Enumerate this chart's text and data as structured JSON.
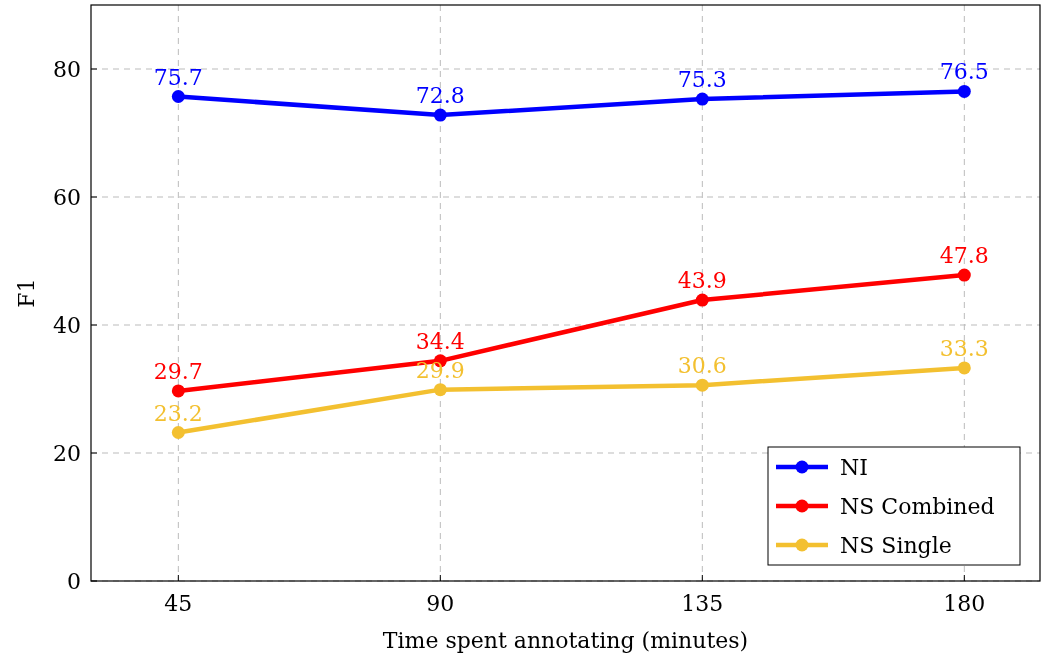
{
  "chart_data": {
    "type": "line",
    "xlabel": "Time spent annotating (minutes)",
    "ylabel": "F1",
    "x": [
      45,
      90,
      135,
      180
    ],
    "xlim": [
      30,
      193
    ],
    "xticks": [
      45,
      90,
      135,
      180
    ],
    "ylim": [
      0,
      90
    ],
    "yticks": [
      0,
      20,
      40,
      60,
      80
    ],
    "grid": true,
    "legend": "bottom right",
    "marker": "circle",
    "line_style": "solid",
    "data_labels": true,
    "series": [
      {
        "name": "NI",
        "color": "#0000ff",
        "values": [
          75.7,
          72.8,
          75.3,
          76.5
        ]
      },
      {
        "name": "NS Combined",
        "color": "#ff0000",
        "values": [
          29.7,
          34.4,
          43.9,
          47.8
        ]
      },
      {
        "name": "NS Single",
        "color": "#f3c030",
        "values": [
          23.2,
          29.9,
          30.6,
          33.3
        ]
      }
    ]
  }
}
